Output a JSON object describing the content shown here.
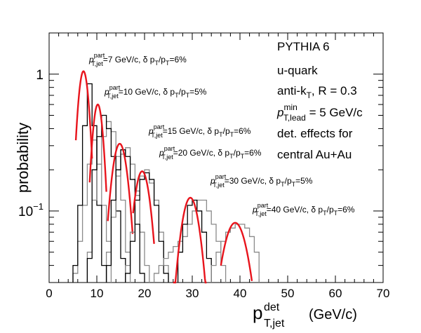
{
  "chart_data": {
    "type": "line",
    "title": "",
    "xlabel_main": "p",
    "xlabel_sup": "det",
    "xlabel_sub": "T,jet",
    "xlabel_unit": "(GeV/c)",
    "ylabel": "probability",
    "xlim": [
      0,
      70
    ],
    "ylim": [
      0.03,
      2.0
    ],
    "yscale": "log",
    "x_ticks": [
      0,
      10,
      20,
      30,
      40,
      50,
      60,
      70
    ],
    "y_ticks": [
      {
        "value": 1,
        "label": "1"
      },
      {
        "value": 0.1,
        "label": "10",
        "exp": "−1"
      }
    ],
    "info_lines": [
      {
        "text": "PYTHIA 6"
      },
      {
        "text": "u-quark"
      },
      {
        "text": "anti-k",
        "sub": "T",
        "rest": ", R = 0.3"
      },
      {
        "text": "p",
        "sup": "min",
        "sub": "T,lead",
        "rest": " = 5 GeV/c"
      },
      {
        "text": "det. effects for"
      },
      {
        "text": "central Au+Au"
      }
    ],
    "series": [
      {
        "pt_label": "=7 GeV/c, δ p",
        "res_label": "/p",
        "res_tail": "=6%",
        "gauss": {
          "mean": 7.2,
          "sigma": 1.05,
          "peak": 1.05,
          "x_range": [
            5.6,
            9.0
          ]
        },
        "hist_black": {
          "x0": 5,
          "w": 1,
          "values": [
            0.04,
            0.11,
            0.42,
            0.85,
            0.42,
            0.11,
            0.04
          ]
        },
        "hist_gray": {
          "x0": 5,
          "w": 1,
          "values": [
            0.035,
            0.06,
            0.11,
            0.22,
            0.33,
            0.22,
            0.11,
            0.06
          ]
        }
      },
      {
        "pt_label": "=10 GeV/c, δ p",
        "res_label": "/p",
        "res_tail": "=5%",
        "gauss": {
          "mean": 10.2,
          "sigma": 1.05,
          "peak": 0.6,
          "x_range": [
            8.5,
            12.0
          ]
        },
        "hist_black": {
          "x0": 8,
          "w": 1,
          "values": [
            0.045,
            0.2,
            0.35,
            0.5,
            0.4,
            0.25,
            0.1,
            0.045
          ]
        },
        "hist_gray": {
          "x0": 8,
          "w": 1,
          "values": [
            0.05,
            0.12,
            0.22,
            0.35,
            0.45,
            0.38,
            0.25,
            0.12,
            0.05
          ]
        }
      },
      {
        "pt_label": "=15 GeV/c, δ p",
        "res_label": "/p",
        "res_tail": "=6%",
        "gauss": {
          "mean": 14.8,
          "sigma": 1.55,
          "peak": 0.31,
          "x_range": [
            12.3,
            17.5
          ]
        },
        "hist_black": {
          "x0": 12,
          "w": 1,
          "values": [
            0.04,
            0.12,
            0.2,
            0.28,
            0.25,
            0.17,
            0.08,
            0.035
          ]
        },
        "hist_gray": {
          "x0": 12,
          "w": 1,
          "values": [
            0.05,
            0.09,
            0.18,
            0.26,
            0.29,
            0.22,
            0.14,
            0.07,
            0.04
          ]
        }
      },
      {
        "pt_label": "=20 GeV/c, δ p",
        "res_label": "/p",
        "res_tail": "=6%",
        "gauss": {
          "mean": 19.5,
          "sigma": 1.6,
          "peak": 0.195,
          "x_range": [
            17.6,
            22.0
          ]
        },
        "hist_black": {
          "x0": 16,
          "w": 1,
          "values": [
            0.035,
            0.06,
            0.12,
            0.17,
            0.19,
            0.17,
            0.11,
            0.06,
            0.035
          ]
        },
        "hist_gray": {
          "x0": 16,
          "w": 1,
          "values": [
            0.04,
            0.07,
            0.13,
            0.18,
            0.2,
            0.16,
            0.12,
            0.07,
            0.04
          ]
        }
      },
      {
        "pt_label": "=30 GeV/c, δ p",
        "res_label": "/p",
        "res_tail": "=5%",
        "gauss": {
          "mean": 29.6,
          "sigma": 1.85,
          "peak": 0.125,
          "x_range": [
            26.0,
            33.0
          ]
        },
        "hist_black": {
          "x0": 27,
          "w": 1,
          "values": [
            0.05,
            0.08,
            0.11,
            0.12,
            0.1,
            0.07,
            0.045
          ]
        },
        "hist_gray": {
          "x0": 22,
          "w": 1,
          "values": [
            0.035,
            0.04,
            0.045,
            0.05,
            0.055,
            0.06,
            0.065,
            0.08,
            0.1,
            0.12,
            0.12,
            0.1,
            0.08,
            0.06,
            0.04
          ]
        }
      },
      {
        "pt_label": "=40 GeV/c, δ p",
        "res_label": "/p",
        "res_tail": "=6%",
        "gauss": {
          "mean": 39.0,
          "sigma": 2.5,
          "peak": 0.082,
          "x_range": [
            36.0,
            42.5
          ]
        },
        "hist_black": {
          "x0": 0,
          "w": 1,
          "values": []
        },
        "hist_gray": {
          "x0": 34,
          "w": 1,
          "values": [
            0.04,
            0.05,
            0.06,
            0.07,
            0.075,
            0.08,
            0.08,
            0.075,
            0.065,
            0.05
          ]
        }
      }
    ]
  }
}
